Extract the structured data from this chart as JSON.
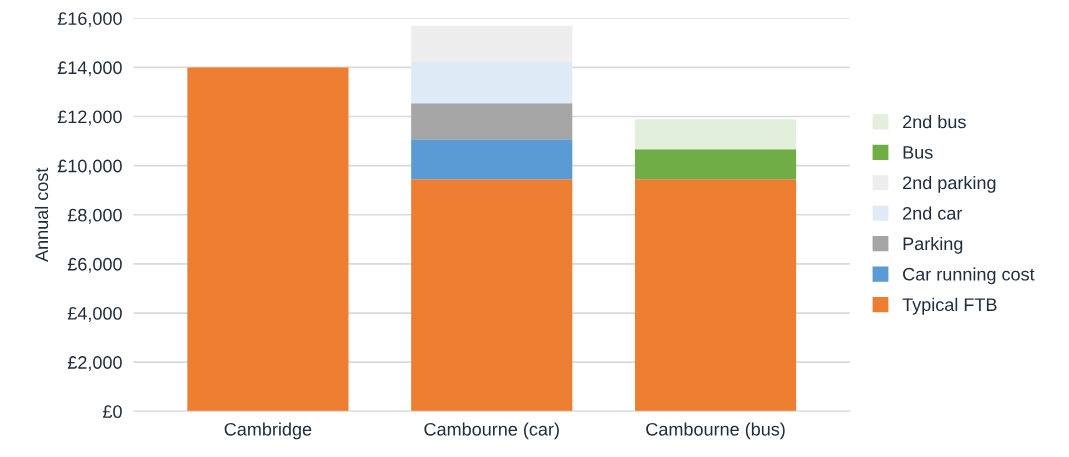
{
  "chart_data": {
    "type": "bar",
    "stacked": true,
    "ylabel": "Annual cost",
    "categories": [
      "Cambridge",
      "Cambourne (car)",
      "Cambourne (bus)"
    ],
    "series": [
      {
        "name": "Typical FTB",
        "color": "#ed7d31",
        "values": [
          14000,
          9450,
          9450
        ]
      },
      {
        "name": "Car running cost",
        "color": "#5b9bd5",
        "values": [
          null,
          1630,
          null
        ]
      },
      {
        "name": "Parking",
        "color": "#a5a5a5",
        "values": [
          null,
          1460,
          null
        ]
      },
      {
        "name": "2nd car",
        "color": "#deebf7",
        "values": [
          null,
          1680,
          null
        ]
      },
      {
        "name": "2nd parking",
        "color": "#ededed",
        "values": [
          null,
          1480,
          null
        ]
      },
      {
        "name": "Bus",
        "color": "#70ad47",
        "values": [
          null,
          null,
          1220
        ]
      },
      {
        "name": "2nd bus",
        "color": "#e2efda",
        "values": [
          null,
          null,
          1220
        ]
      }
    ],
    "ylim": [
      0,
      16000
    ],
    "yticks": [
      {
        "value": 0,
        "label": "£0"
      },
      {
        "value": 2000,
        "label": "£2,000"
      },
      {
        "value": 4000,
        "label": "£4,000"
      },
      {
        "value": 6000,
        "label": "£6,000"
      },
      {
        "value": 8000,
        "label": "£8,000"
      },
      {
        "value": 10000,
        "label": "£10,000"
      },
      {
        "value": 12000,
        "label": "£12,000"
      },
      {
        "value": 14000,
        "label": "£14,000"
      },
      {
        "value": 16000,
        "label": "£16,000"
      }
    ],
    "grid": "y",
    "legend": "right"
  }
}
